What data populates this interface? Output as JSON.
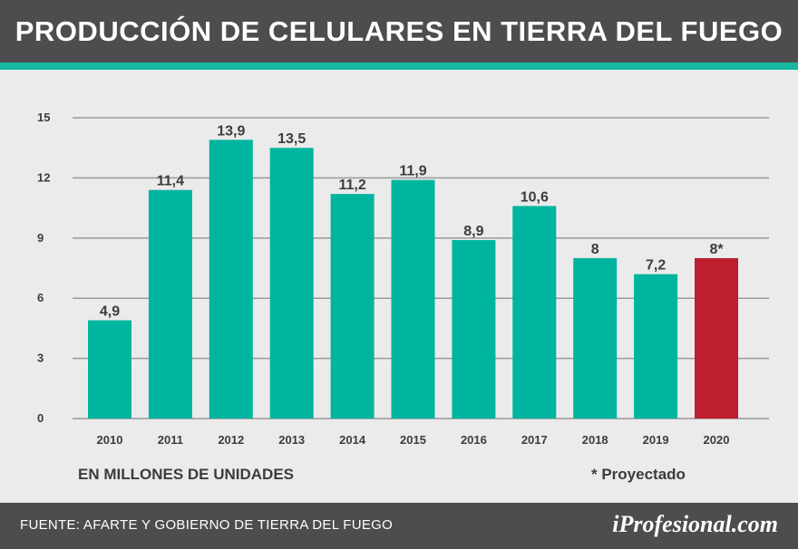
{
  "header": {
    "title": "PRODUCCIÓN DE CELULARES EN TIERRA DEL FUEGO"
  },
  "chart_data": {
    "type": "bar",
    "categories": [
      "2010",
      "2011",
      "2012",
      "2013",
      "2014",
      "2015",
      "2016",
      "2017",
      "2018",
      "2019",
      "2020"
    ],
    "values": [
      4.9,
      11.4,
      13.9,
      13.5,
      11.2,
      11.9,
      8.9,
      10.6,
      8.0,
      7.2,
      8.0
    ],
    "data_labels": [
      "4,9",
      "11,4",
      "13,9",
      "13,5",
      "11,2",
      "11,9",
      "8,9",
      "10,6",
      "8",
      "7,2",
      "8*"
    ],
    "ylim": [
      0,
      15
    ],
    "yticks": [
      0,
      3,
      6,
      9,
      12,
      15
    ],
    "grid": true,
    "colors": {
      "bar": "#00b5a0",
      "projected_bar": "#be1e2d",
      "grid": "#9a9a9a",
      "text": "#3c3c3e"
    },
    "projected_index": 10
  },
  "labels": {
    "unit": "EN MILLONES DE UNIDADES",
    "note": "* Proyectado"
  },
  "footer": {
    "source": "FUENTE: AFARTE Y GOBIERNO DE TIERRA DEL FUEGO",
    "brand": "iProfesional.com"
  }
}
